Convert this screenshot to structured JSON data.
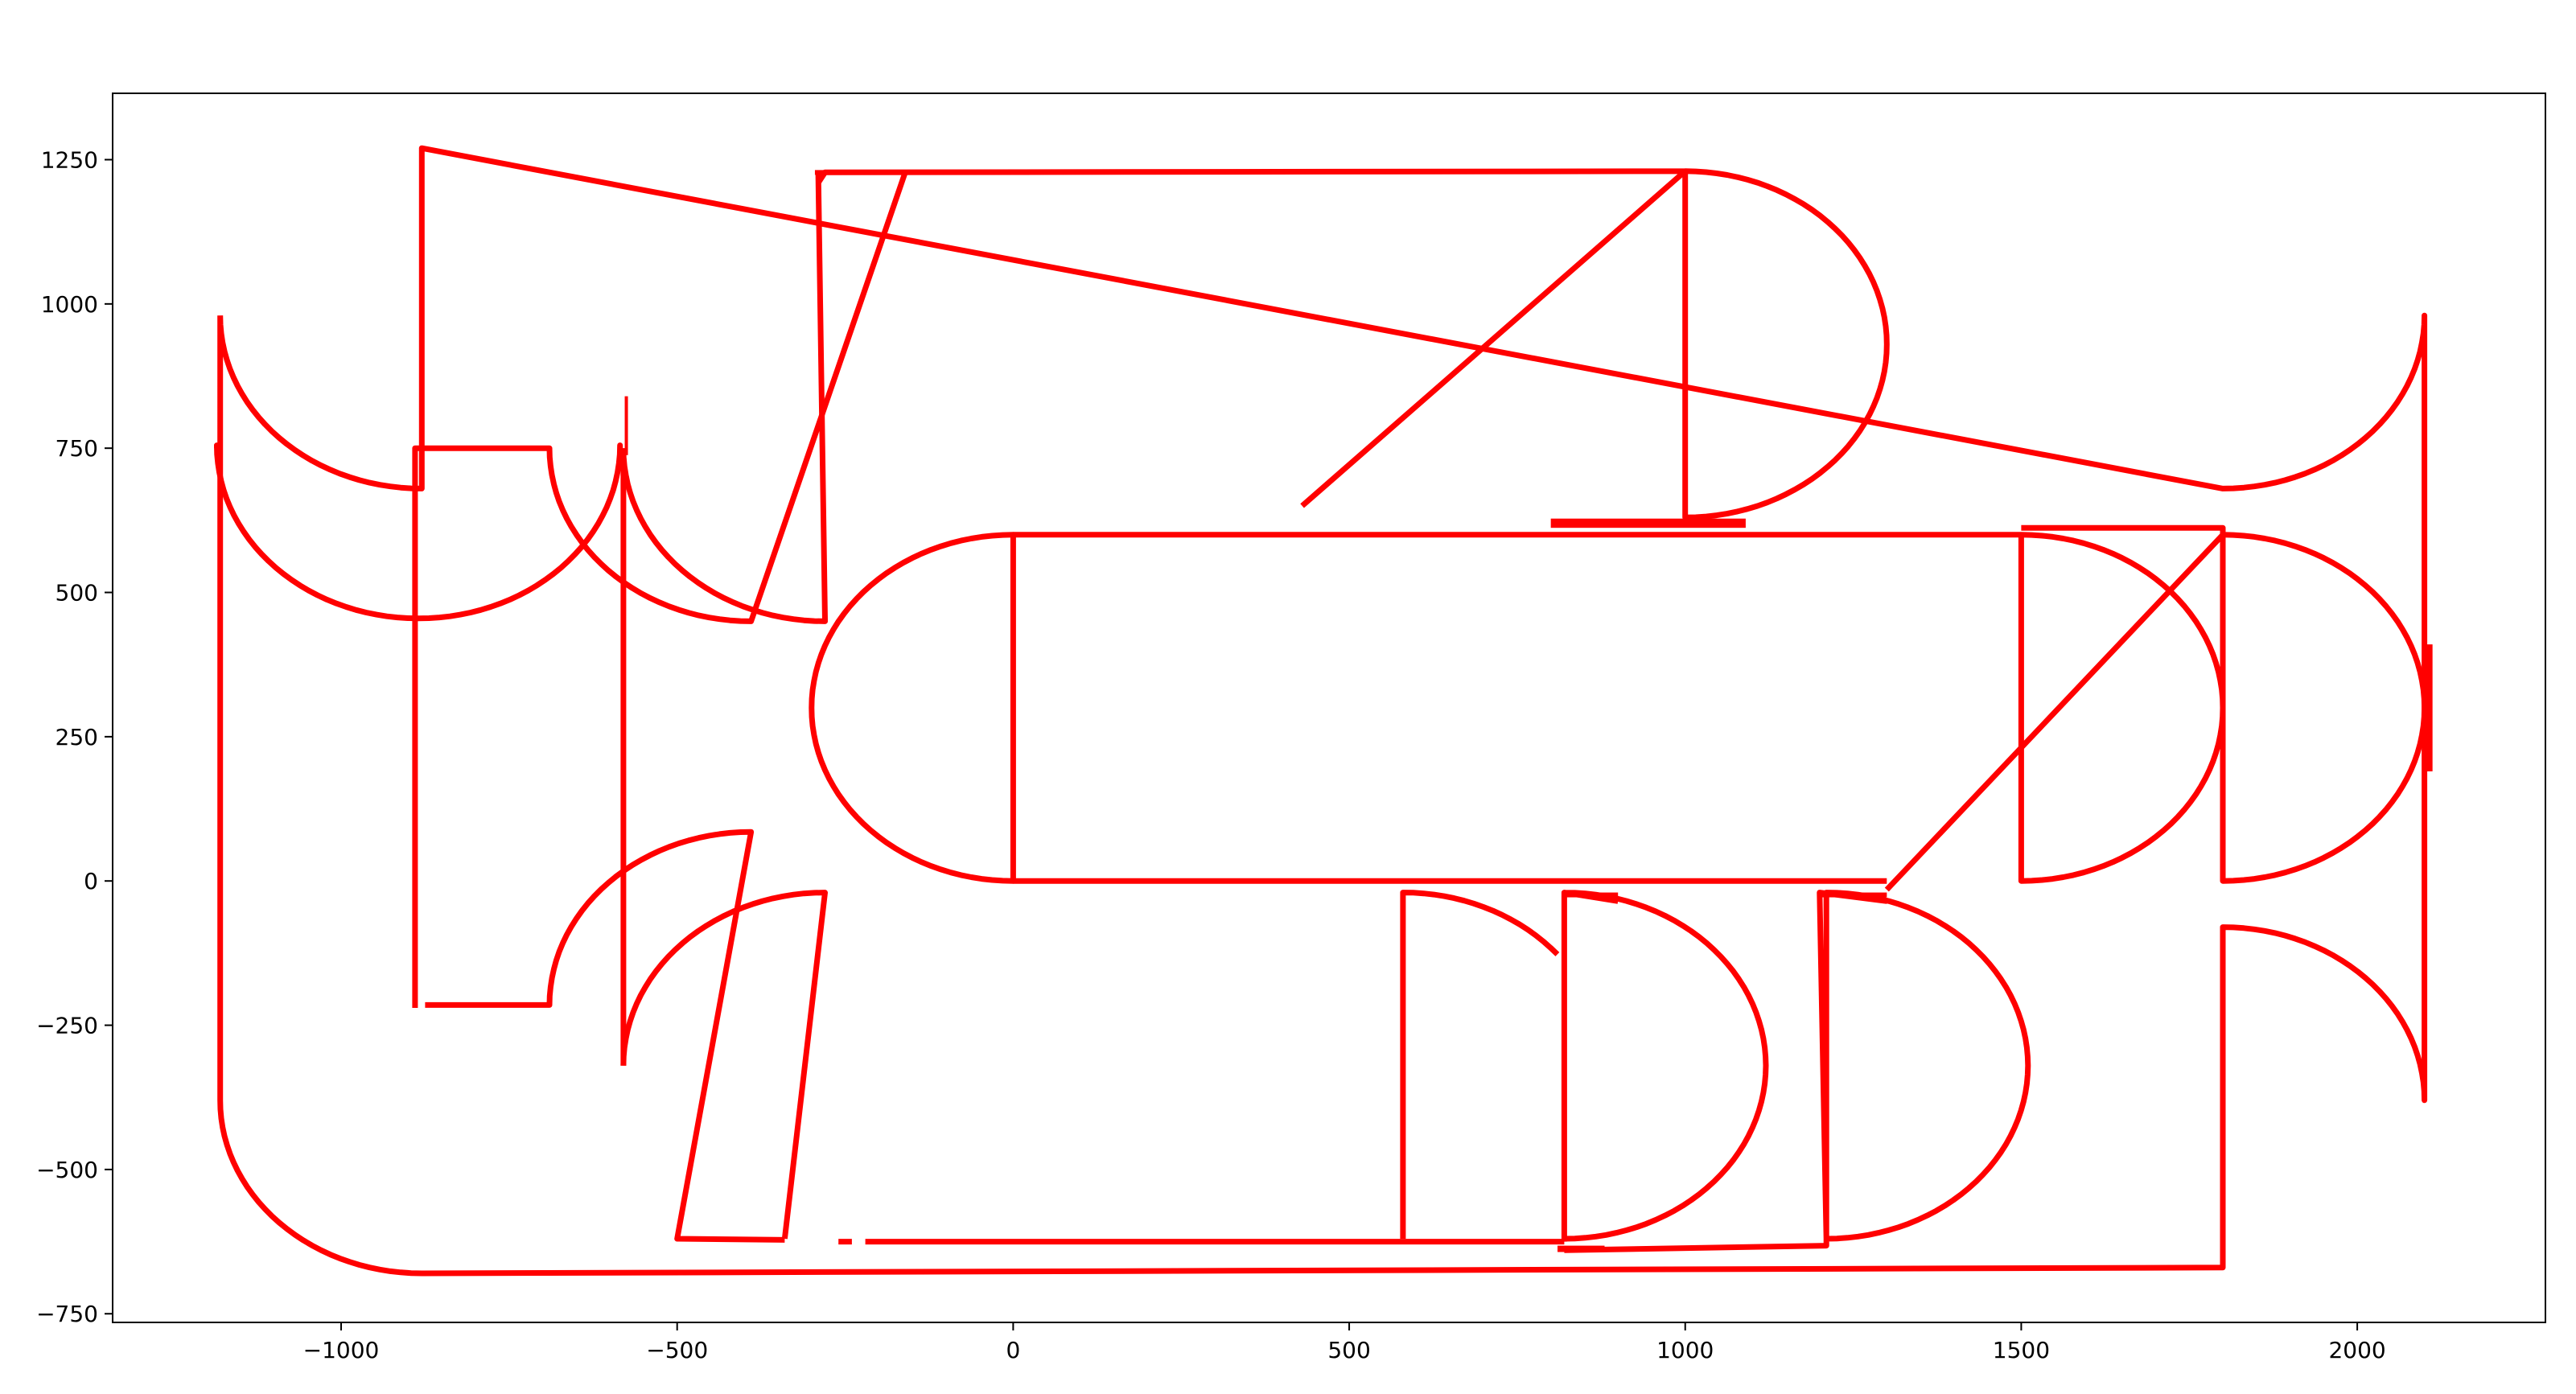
{
  "chart_data": {
    "type": "line",
    "title": "",
    "xlabel": "",
    "ylabel": "",
    "xlim": [
      -1340,
      2280
    ],
    "ylim": [
      -765,
      1365
    ],
    "grid": false,
    "legend": "none",
    "line_color": "#ff0000",
    "x_ticks": [
      {
        "value": -1000,
        "label": "−1000"
      },
      {
        "value": -500,
        "label": "−500"
      },
      {
        "value": 0,
        "label": "0"
      },
      {
        "value": 500,
        "label": "500"
      },
      {
        "value": 1000,
        "label": "1000"
      },
      {
        "value": 1500,
        "label": "1500"
      },
      {
        "value": 2000,
        "label": "2000"
      }
    ],
    "y_ticks": [
      {
        "value": -750,
        "label": "−750"
      },
      {
        "value": -500,
        "label": "−500"
      },
      {
        "value": -250,
        "label": "−250"
      },
      {
        "value": 0,
        "label": "0"
      },
      {
        "value": 250,
        "label": "250"
      },
      {
        "value": 500,
        "label": "500"
      },
      {
        "value": 750,
        "label": "750"
      },
      {
        "value": 1000,
        "label": "1000"
      },
      {
        "value": 1250,
        "label": "1250"
      }
    ],
    "series": [
      {
        "values": [
          [
            -1180,
            980
          ],
          [
            -1180,
            -380
          ],
          {
            "arc": [
              -880,
              -380,
              -180,
              -90
            ]
          },
          [
            1800,
            -670
          ],
          {
            "arc": [
              1800,
              -380,
              90,
              0
            ]
          },
          [
            2100,
            980
          ],
          {
            "arc": [
              1800,
              980,
              0,
              -90
            ]
          },
          [
            -880,
            1270
          ],
          {
            "arc": [
              -880,
              980,
              -90,
              -180
            ]
          }
        ]
      },
      {
        "values": [
          [
            -1185,
            750
          ],
          {
            "arc": [
              -885,
              755,
              -180,
              -90
            ]
          },
          {
            "arc": [
              -885,
              755,
              -90,
              0
            ]
          },
          [
            -585,
            750
          ]
        ]
      },
      {
        "values": [
          [
            -890,
            -220
          ],
          [
            -890,
            750
          ],
          {
            "arc": [
              -390,
              750,
              -180,
              -90
            ]
          },
          [
            -160,
            1230
          ]
        ]
      },
      {
        "values": [
          [
            -290,
            1210
          ],
          [
            -280,
            1228
          ],
          [
            1000,
            1230
          ],
          {
            "arc": [
              1000,
              930,
              -90,
              0
            ]
          },
          {
            "arc": [
              1000,
              930,
              0,
              90
            ]
          },
          [
            430,
            650
          ]
        ]
      },
      {
        "values": [
          [
            -580,
            750
          ],
          {
            "arc": [
              -280,
              750,
              -180,
              -90
            ]
          },
          [
            -290,
            1228
          ]
        ]
      },
      {
        "values": [
          [
            -580,
            750
          ],
          [
            -580,
            -320
          ]
        ]
      },
      {
        "values": [
          [
            -580,
            -320
          ],
          {
            "arc": [
              -280,
              -320,
              -180,
              -270
            ]
          },
          [
            -340,
            -620
          ]
        ]
      },
      {
        "values": [
          [
            -875,
            -215
          ],
          {
            "arc": [
              -390,
              -215,
              -180,
              -270
            ]
          },
          [
            -500,
            -620
          ],
          [
            -340,
            -622
          ]
        ]
      },
      {
        "values": [
          [
            -260,
            -625
          ],
          [
            -240,
            -625
          ]
        ]
      },
      {
        "values": [
          [
            -220,
            -625
          ],
          [
            820,
            -625
          ]
        ]
      },
      {
        "values": [
          [
            580,
            -620
          ],
          {
            "arc": [
              580,
              -320,
              90,
              40
            ]
          }
        ]
      },
      {
        "values": [
          [
            820,
            -625
          ],
          {
            "arc": [
              820,
              -320,
              90,
              0
            ]
          },
          {
            "arc": [
              820,
              -320,
              0,
              -90
            ]
          },
          [
            820,
            -20
          ],
          [
            900,
            -35
          ]
        ]
      },
      {
        "values": [
          [
            820,
            -640
          ],
          [
            1210,
            -632
          ],
          {
            "arc": [
              1210,
              -320,
              90,
              0
            ]
          },
          {
            "arc": [
              1210,
              -320,
              0,
              -90
            ]
          },
          [
            1200,
            -20
          ],
          [
            1300,
            -35
          ]
        ]
      },
      {
        "values": [
          [
            0,
            0
          ],
          [
            1300,
            0
          ]
        ]
      },
      {
        "values": [
          [
            0,
            600
          ],
          [
            1500,
            600
          ],
          {
            "arc": [
              1500,
              300,
              -90,
              0
            ]
          },
          {
            "arc": [
              1500,
              300,
              0,
              90
            ]
          },
          [
            1500,
            0
          ]
        ]
      },
      {
        "values": [
          [
            0,
            600
          ],
          {
            "arc": [
              0,
              300,
              -90,
              -180
            ]
          },
          {
            "arc": [
              0,
              300,
              -180,
              -270
            ]
          },
          [
            0,
            0
          ]
        ]
      },
      {
        "values": [
          [
            1500,
            612
          ],
          [
            1800,
            612
          ],
          {
            "arc": [
              1800,
              300,
              -90,
              0
            ]
          },
          {
            "arc": [
              1800,
              300,
              0,
              90
            ]
          },
          [
            1300,
            -15
          ]
        ]
      }
    ],
    "thick_marks": [
      {
        "x": [
          -295,
          -165
        ],
        "y": [
          1226,
          1232
        ]
      },
      {
        "x": [
          800,
          1090
        ],
        "y": [
          612,
          628
        ]
      },
      {
        "x": [
          -578,
          -575
        ],
        "y": [
          738,
          840
        ]
      },
      {
        "x": [
          2104,
          2112
        ],
        "y": [
          190,
          410
        ]
      },
      {
        "x": [
          810,
          880
        ],
        "y": [
          -643,
          -632
        ]
      },
      {
        "x": [
          820,
          900
        ],
        "y": [
          -28,
          -20
        ]
      },
      {
        "x": [
          1200,
          1300
        ],
        "y": [
          -28,
          -20
        ]
      }
    ]
  }
}
